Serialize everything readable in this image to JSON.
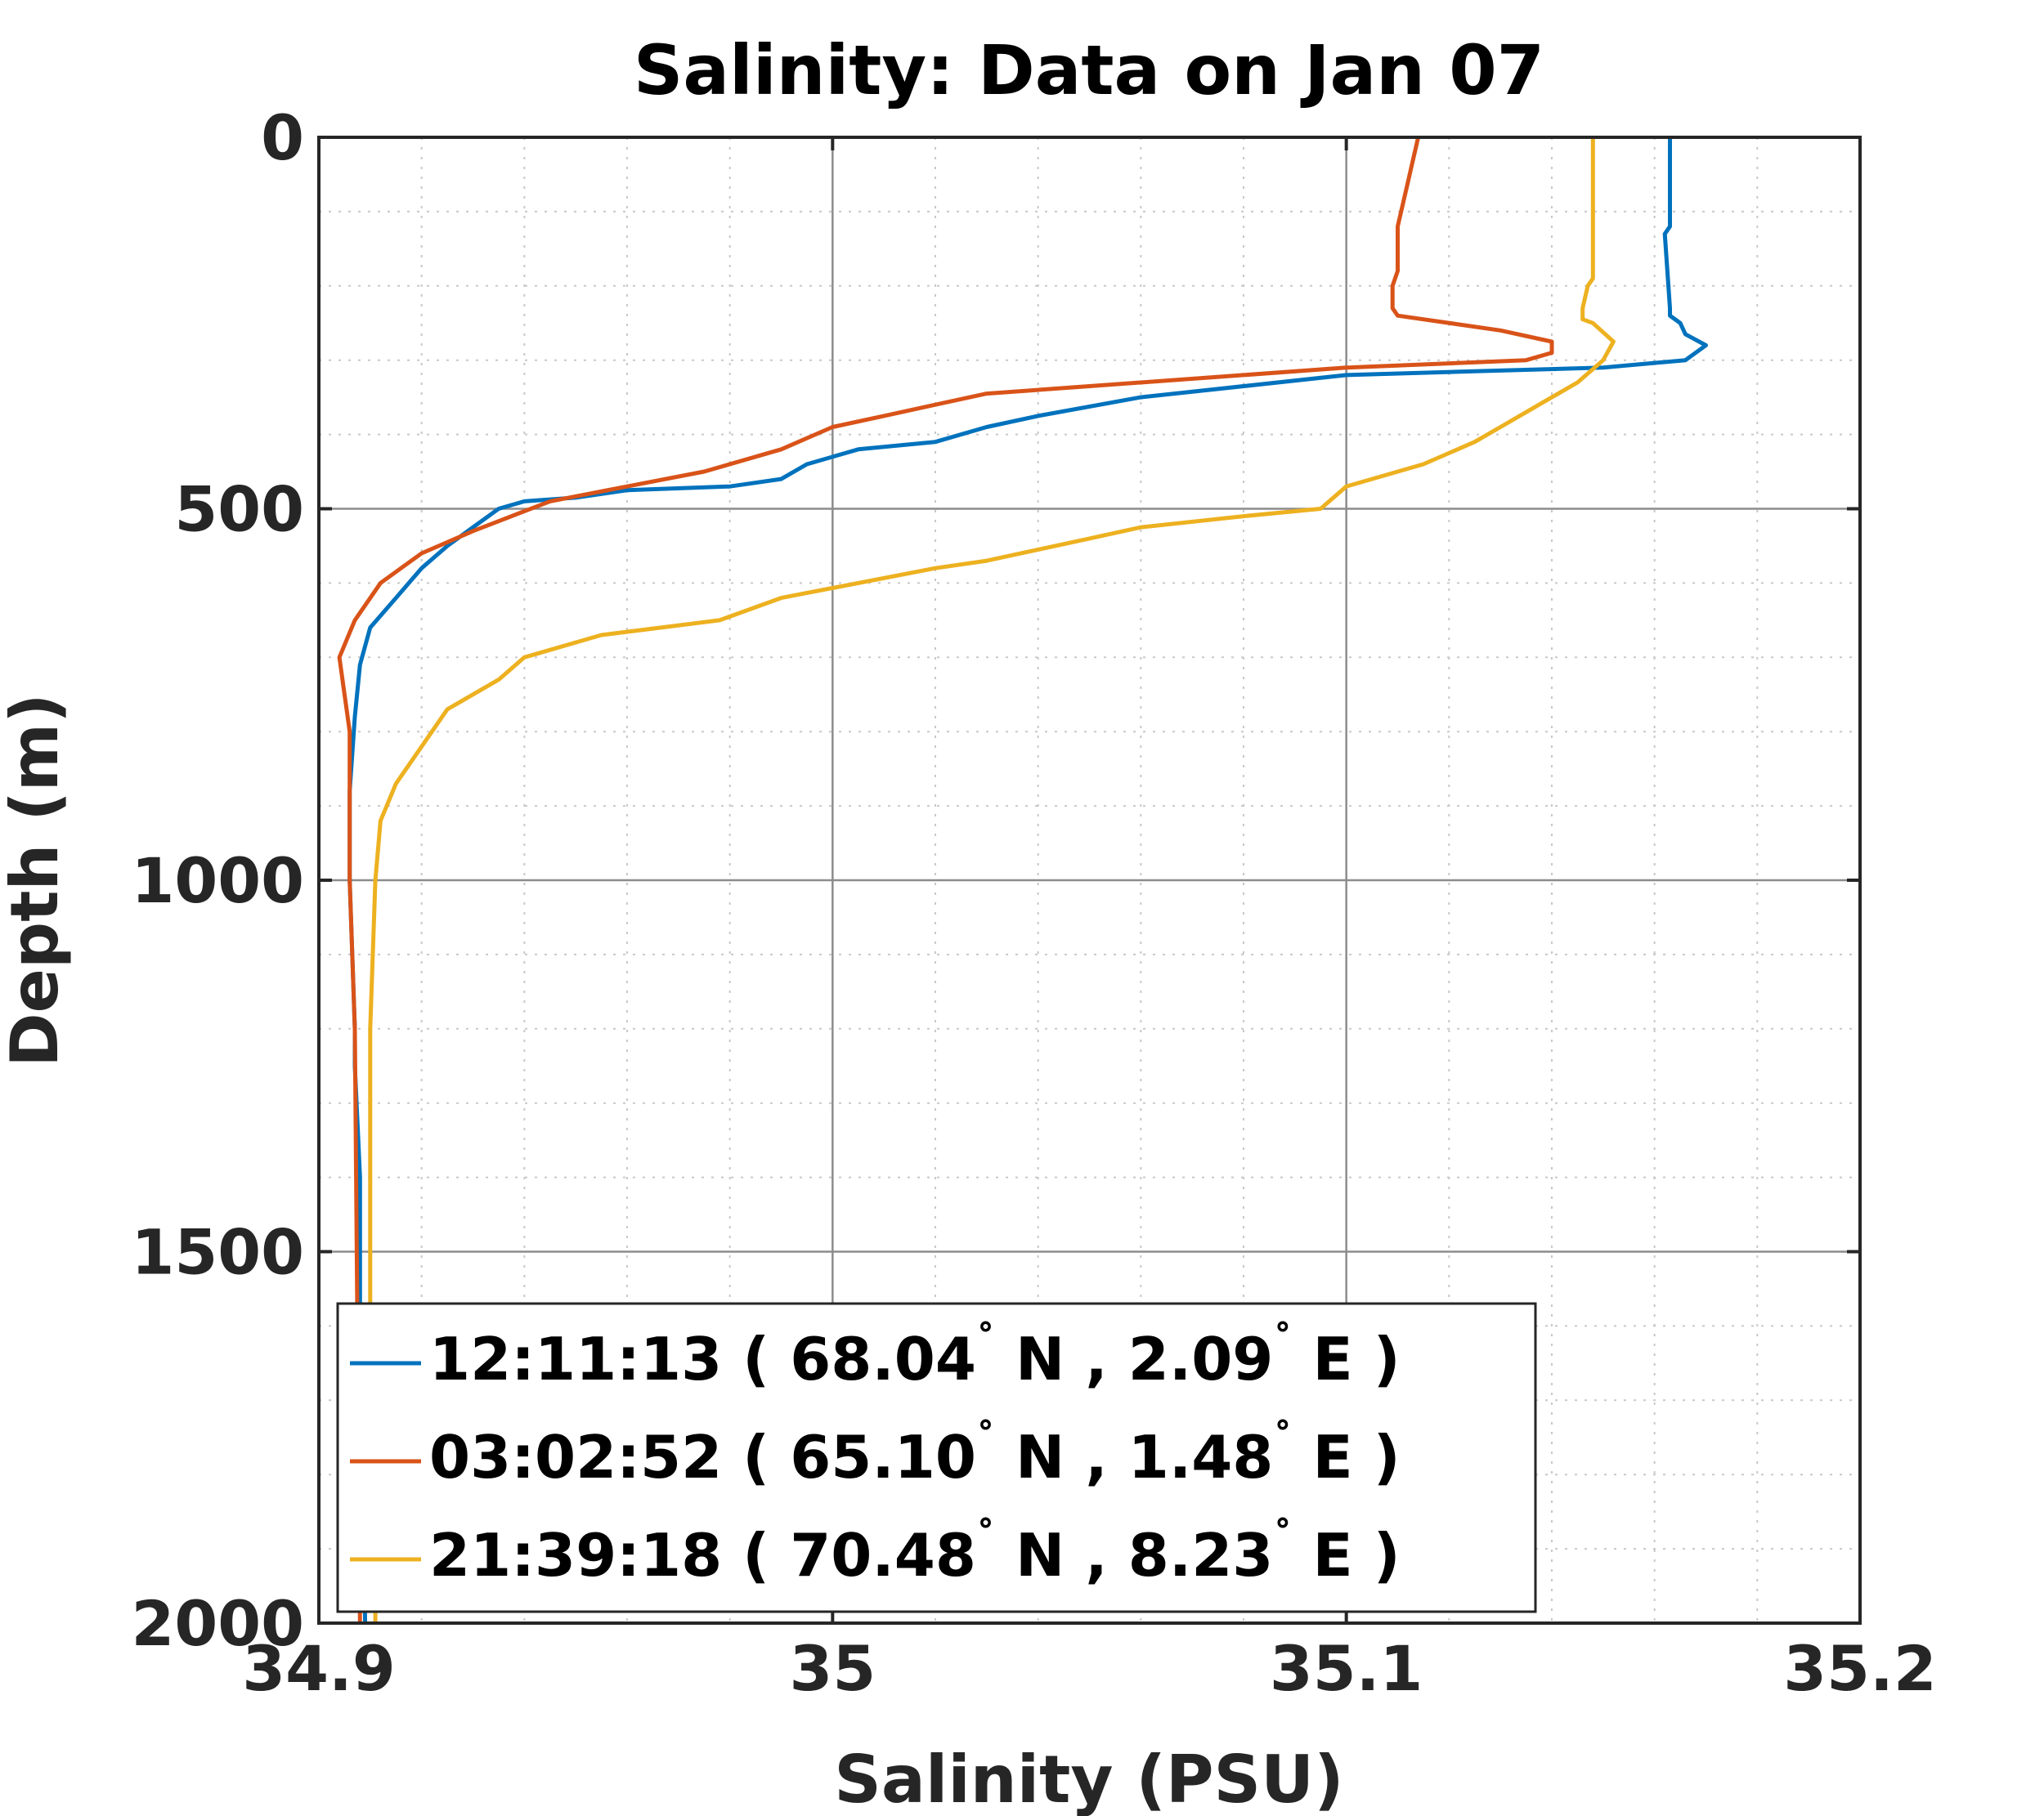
{
  "chart_data": {
    "type": "line",
    "title": "Salinity: Data on Jan 07",
    "xlabel": "Salinity (PSU)",
    "ylabel": "Depth (m)",
    "xlim": [
      34.9,
      35.2
    ],
    "ylim": [
      0,
      2000
    ],
    "y_reversed": true,
    "xticks": [
      "34.9",
      "35",
      "35.1",
      "35.2"
    ],
    "yticks": [
      "0",
      "500",
      "1000",
      "1500",
      "2000"
    ],
    "grid": true,
    "minor_grid": true,
    "legend_position": "bottom-left",
    "series": [
      {
        "name_time": "12:11:13",
        "name_lat": "68.04",
        "name_lon": "2.09",
        "color": "#0072BD",
        "x": [
          35.163,
          35.163,
          35.162,
          35.163,
          35.163,
          35.165,
          35.166,
          35.17,
          35.166,
          35.15,
          35.125,
          35.1,
          35.06,
          35.04,
          35.03,
          35.02,
          35.005,
          34.995,
          34.99,
          34.98,
          34.96,
          34.95,
          34.94,
          34.935,
          34.93,
          34.925,
          34.92,
          34.915,
          34.91,
          34.908,
          34.907,
          34.906,
          34.906,
          34.907,
          34.907,
          34.908,
          34.908,
          34.909
        ],
        "y": [
          0,
          120,
          130,
          230,
          240,
          250,
          265,
          280,
          300,
          310,
          315,
          320,
          350,
          375,
          390,
          410,
          420,
          440,
          460,
          470,
          475,
          485,
          490,
          500,
          525,
          550,
          580,
          620,
          660,
          710,
          780,
          880,
          1000,
          1200,
          1250,
          1400,
          1600,
          2000
        ]
      },
      {
        "name_time": "03:02:52",
        "name_lat": "65.10",
        "name_lon": "1.48",
        "color": "#D95319",
        "x": [
          35.114,
          35.113,
          35.112,
          35.111,
          35.11,
          35.11,
          35.109,
          35.109,
          35.11,
          35.13,
          35.14,
          35.14,
          35.135,
          35.1,
          35.08,
          35.05,
          35.03,
          35.02,
          35.01,
          35.0,
          34.99,
          34.975,
          34.96,
          34.945,
          34.93,
          34.92,
          34.912,
          34.907,
          34.904,
          34.905,
          34.906,
          34.906,
          34.907,
          34.908
        ],
        "y": [
          0,
          30,
          60,
          90,
          120,
          180,
          200,
          230,
          240,
          260,
          275,
          290,
          300,
          310,
          320,
          335,
          345,
          360,
          375,
          390,
          420,
          450,
          470,
          490,
          530,
          560,
          600,
          650,
          700,
          750,
          800,
          1000,
          1200,
          2000
        ]
      },
      {
        "name_time": "21:39:18",
        "name_lat": "70.48",
        "name_lon": "8.23",
        "color": "#EDB120",
        "x": [
          35.148,
          35.148,
          35.147,
          35.146,
          35.146,
          35.148,
          35.152,
          35.15,
          35.145,
          35.14,
          35.135,
          35.13,
          35.125,
          35.115,
          35.1,
          35.095,
          35.08,
          35.06,
          35.05,
          35.03,
          35.02,
          34.99,
          34.978,
          34.955,
          34.94,
          34.935,
          34.925,
          34.92,
          34.915,
          34.912,
          34.911,
          34.91,
          34.91,
          34.91,
          34.911,
          34.911
        ],
        "y": [
          0,
          190,
          200,
          230,
          245,
          250,
          275,
          300,
          330,
          350,
          370,
          390,
          410,
          440,
          470,
          500,
          510,
          525,
          540,
          570,
          580,
          620,
          650,
          670,
          700,
          730,
          770,
          820,
          870,
          920,
          1000,
          1200,
          1300,
          1600,
          1800,
          2000
        ]
      }
    ]
  }
}
